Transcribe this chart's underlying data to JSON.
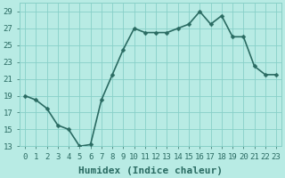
{
  "x": [
    0,
    1,
    2,
    3,
    4,
    5,
    6,
    7,
    8,
    9,
    10,
    11,
    12,
    13,
    14,
    15,
    16,
    17,
    18,
    19,
    20,
    21,
    22,
    23
  ],
  "y": [
    19,
    18.5,
    17.5,
    15.5,
    15,
    13,
    13.2,
    18.5,
    21.5,
    24.5,
    27,
    26.5,
    26.5,
    26.5,
    27,
    27.5,
    29,
    27.5,
    28.5,
    26,
    26,
    22.5,
    21.5,
    21.5
  ],
  "line_color": "#2a6b62",
  "marker_color": "#2a6b62",
  "bg_color": "#b8ebe4",
  "grid_color": "#88d0c8",
  "xlabel": "Humidex (Indice chaleur)",
  "xlim": [
    -0.5,
    23.5
  ],
  "ylim": [
    13,
    30
  ],
  "yticks": [
    13,
    15,
    17,
    19,
    21,
    23,
    25,
    27,
    29
  ],
  "xticks": [
    0,
    1,
    2,
    3,
    4,
    5,
    6,
    7,
    8,
    9,
    10,
    11,
    12,
    13,
    14,
    15,
    16,
    17,
    18,
    19,
    20,
    21,
    22,
    23
  ],
  "tick_fontsize": 6.5,
  "xlabel_fontsize": 8,
  "line_width": 1.2,
  "marker_size": 2.5
}
